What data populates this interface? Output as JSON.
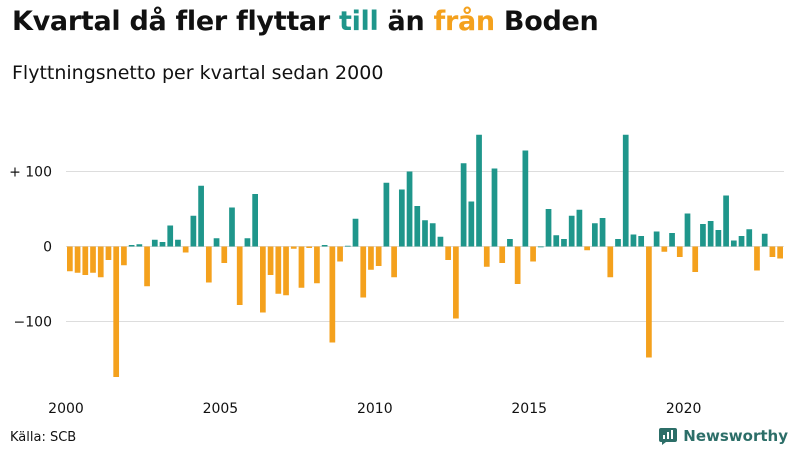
{
  "title": {
    "part1": "Kvartal då fler flyttar ",
    "till": "till",
    "mid": " än ",
    "fran": "från",
    "end": " Boden"
  },
  "subtitle": "Flyttningsnetto per kvartal sedan 2000",
  "source": "Källa: SCB",
  "brand": {
    "name": "Newsworthy",
    "icon": "newsworthy-chart-logo-icon"
  },
  "colors": {
    "positive": "#1f968b",
    "negative": "#f4a11d",
    "grid": "#dddddd",
    "brand": "#2c6e68"
  },
  "chart_data": {
    "type": "bar",
    "title": "Kvartal då fler flyttar till än från Boden",
    "subtitle": "Flyttningsnetto per kvartal sedan 2000",
    "ylim": [
      -190,
      160
    ],
    "yticks": [
      100,
      0,
      -100
    ],
    "ytick_labels": [
      "+ 100",
      "0",
      "−100"
    ],
    "xticks": [
      2000,
      2005,
      2010,
      2015,
      2020
    ],
    "xtick_labels": [
      "2000",
      "2005",
      "2010",
      "2015",
      "2020"
    ],
    "legend": "title-colored-words",
    "grid": true,
    "series": [
      {
        "values": [
          -33,
          -35,
          -38,
          -35,
          -41,
          -18,
          -174,
          -25,
          2,
          3,
          -53,
          9,
          6,
          28,
          9,
          -8,
          41,
          81,
          -48,
          11,
          -22,
          52,
          -78,
          11,
          70,
          -88,
          -38,
          -63,
          -65,
          -3,
          -55,
          -2,
          -49,
          2,
          -128,
          -20,
          1,
          37,
          -68,
          -31,
          -26,
          85,
          -41,
          76,
          100,
          54,
          35,
          31,
          13,
          -18,
          -96,
          111,
          60,
          149,
          -27,
          104,
          -22,
          10,
          -50,
          128,
          -20,
          0,
          50,
          15,
          10,
          41,
          49,
          -5,
          31,
          38,
          -41,
          10,
          149,
          16,
          14,
          -148,
          20,
          -7,
          18,
          -14,
          44,
          -34,
          30,
          34,
          22,
          68,
          8,
          14,
          23,
          -32,
          17,
          -14,
          -16
        ]
      }
    ]
  }
}
